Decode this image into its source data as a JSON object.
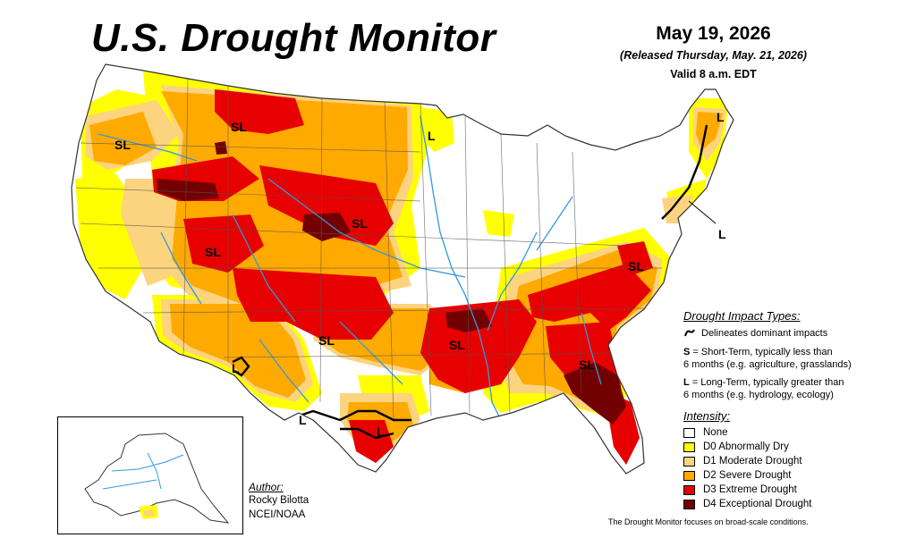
{
  "header": {
    "title": "U.S. Drought Monitor",
    "date": "May 19, 2026",
    "released": "(Released Thursday, May. 21, 2026)",
    "valid": "Valid 8 a.m. EDT"
  },
  "impact_types": {
    "title": "Drought Impact Types:",
    "delineates": "Delineates dominant impacts",
    "short_term_key": "S",
    "short_term_line1": " = Short-Term, typically less than",
    "short_term_line2": "6 months (e.g. agriculture, grasslands)",
    "long_term_key": "L",
    "long_term_line1": " = Long-Term, typically greater than",
    "long_term_line2": "6 months (e.g. hydrology, ecology)"
  },
  "intensity": {
    "title": "Intensity:",
    "categories": [
      {
        "label": "None",
        "color": "#ffffff"
      },
      {
        "label": "D0 Abnormally Dry",
        "color": "#ffff00"
      },
      {
        "label": "D1 Moderate Drought",
        "color": "#fcd37f"
      },
      {
        "label": "D2 Severe Drought",
        "color": "#ffaa00"
      },
      {
        "label": "D3 Extreme Drought",
        "color": "#e60000"
      },
      {
        "label": "D4 Exceptional Drought",
        "color": "#730000"
      }
    ]
  },
  "author": {
    "title": "Author:",
    "name": "Rocky Bilotta",
    "org": "NCEI/NOAA"
  },
  "map_labels": {
    "sl_oregon": "SL",
    "sl_montana": "SL",
    "l_northdakota": "L",
    "l_maine": "L",
    "sl_nebraska": "SL",
    "sl_utah": "SL",
    "l_northeast": "L",
    "sl_virginia": "SL",
    "sl_oklahoma": "SL",
    "sl_arkansas": "SL",
    "sl_georgia": "SL",
    "l_westtexas": "L",
    "l_southtexas": "L",
    "l_newmexico": "L"
  },
  "footnote": "The Drought Monitor focuses on broad-scale conditions.",
  "colors": {
    "water": "#3399dd",
    "outline": "#333333",
    "impact_line": "#000000"
  }
}
